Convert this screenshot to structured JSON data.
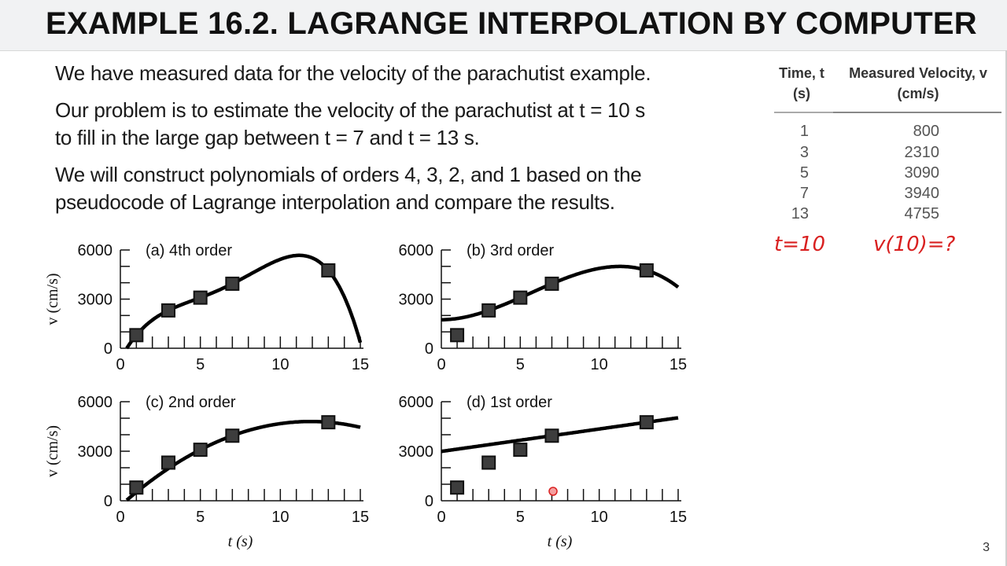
{
  "title": "EXAMPLE 16.2. LAGRANGE INTERPOLATION BY COMPUTER",
  "paragraphs": [
    "We have measured data for the velocity of the parachutist example.",
    "Our problem is to estimate the velocity of the parachutist at t = 10 s",
    "to fill in the large gap between t = 7 and t = 13 s.",
    "We will construct polynomials of orders 4, 3, 2, and 1 based on the",
    "pseudocode of Lagrange interpolation and compare the results."
  ],
  "table": {
    "headers": [
      "Time, t\n(s)",
      "Measured Velocity, v\n(cm/s)"
    ],
    "header_time_l1": "Time, t",
    "header_time_l2": "(s)",
    "header_vel_l1": "Measured Velocity, v",
    "header_vel_l2": "(cm/s)",
    "rows": [
      {
        "t": "1",
        "v": "800"
      },
      {
        "t": "3",
        "v": "2310"
      },
      {
        "t": "5",
        "v": "3090"
      },
      {
        "t": "7",
        "v": "3940"
      },
      {
        "t": "13",
        "v": "4755"
      }
    ]
  },
  "annotations": {
    "handwritten_t": "t=10",
    "handwritten_v": "v(10)=?",
    "ink_color": "#d92020"
  },
  "page_number": "3",
  "chart_data": [
    {
      "type": "line",
      "panel_label": "(a)",
      "title": "4th order",
      "ylabel": "v (cm/s)",
      "xlabel": "",
      "xlim": [
        0,
        15
      ],
      "ylim": [
        0,
        6000
      ],
      "xticks": [
        "0",
        "5",
        "10",
        "15"
      ],
      "yticks": [
        "0",
        "3000",
        "6000"
      ],
      "points": {
        "t": [
          1,
          3,
          5,
          7,
          13
        ],
        "v": [
          800,
          2310,
          3090,
          3940,
          4755
        ]
      },
      "fit_points_t": [
        1,
        3,
        5,
        7,
        13
      ],
      "order": 4,
      "grid": false
    },
    {
      "type": "line",
      "panel_label": "(b)",
      "title": "3rd order",
      "ylabel": "",
      "xlabel": "",
      "xlim": [
        0,
        15
      ],
      "ylim": [
        0,
        6000
      ],
      "xticks": [
        "0",
        "5",
        "10",
        "15"
      ],
      "yticks": [
        "0",
        "3000",
        "6000"
      ],
      "points": {
        "t": [
          1,
          3,
          5,
          7,
          13
        ],
        "v": [
          800,
          2310,
          3090,
          3940,
          4755
        ]
      },
      "fit_points_t": [
        3,
        5,
        7,
        13
      ],
      "order": 3,
      "grid": false
    },
    {
      "type": "line",
      "panel_label": "(c)",
      "title": "2nd order",
      "ylabel": "v (cm/s)",
      "xlabel": "t (s)",
      "xlim": [
        0,
        15
      ],
      "ylim": [
        0,
        6000
      ],
      "xticks": [
        "0",
        "5",
        "10",
        "15"
      ],
      "yticks": [
        "0",
        "3000",
        "6000"
      ],
      "points": {
        "t": [
          1,
          3,
          5,
          7,
          13
        ],
        "v": [
          800,
          2310,
          3090,
          3940,
          4755
        ]
      },
      "fit_points_t": [
        5,
        7,
        13
      ],
      "order": 2,
      "grid": false
    },
    {
      "type": "line",
      "panel_label": "(d)",
      "title": "1st order",
      "ylabel": "",
      "xlabel": "t (s)",
      "xlim": [
        0,
        15
      ],
      "ylim": [
        0,
        6000
      ],
      "xticks": [
        "0",
        "5",
        "10",
        "15"
      ],
      "yticks": [
        "0",
        "3000",
        "6000"
      ],
      "points": {
        "t": [
          1,
          3,
          5,
          7,
          13
        ],
        "v": [
          800,
          2310,
          3090,
          3940,
          4755
        ]
      },
      "fit_points_t": [
        7,
        13
      ],
      "order": 1,
      "grid": false
    }
  ]
}
